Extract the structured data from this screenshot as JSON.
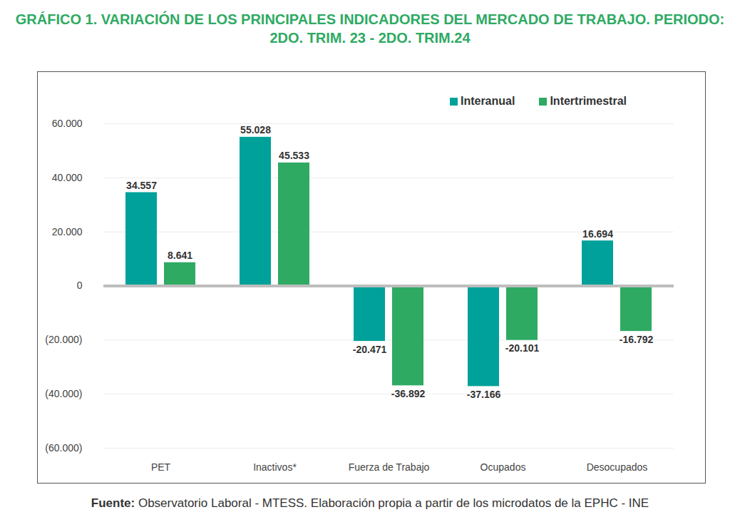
{
  "chart_data": {
    "type": "bar",
    "title": "GRÁFICO 1. VARIACIÓN DE LOS PRINCIPALES INDICADORES DEL MERCADO DE TRABAJO. PERIODO: 2DO. TRIM. 23 - 2DO. TRIM.24",
    "caption": "Fuente: Observatorio Laboral - MTESS. Elaboración propia a partir de los microdatos de la EPHC - INE",
    "categories": [
      "PET",
      "Inactivos*",
      "Fuerza de Trabajo",
      "Ocupados",
      "Desocupados"
    ],
    "series": [
      {
        "name": "Interanual",
        "color": "#00a19a",
        "values": [
          34557,
          55028,
          -20471,
          -37166,
          16694
        ],
        "value_labels": [
          "34.557",
          "55.028",
          "-20.471",
          "-37.166",
          "16.694"
        ]
      },
      {
        "name": "Intertrimestral",
        "color": "#2eaa63",
        "values": [
          8641,
          45533,
          -36892,
          -20101,
          -16792
        ],
        "value_labels": [
          "8.641",
          "45.533",
          "-36.892",
          "-20.101",
          "-16.792"
        ]
      }
    ],
    "ylim": [
      -60000,
      60000
    ],
    "yticks": [
      {
        "value": -60000,
        "label": "(60.000)"
      },
      {
        "value": -40000,
        "label": "(40.000)"
      },
      {
        "value": -20000,
        "label": "(20.000)"
      },
      0,
      {
        "value": 20000,
        "label": "20.000"
      },
      {
        "value": 40000,
        "label": "40.000"
      },
      {
        "value": 60000,
        "label": "60.000"
      }
    ],
    "grid": true,
    "legend": "top-right",
    "data_labels": true
  }
}
